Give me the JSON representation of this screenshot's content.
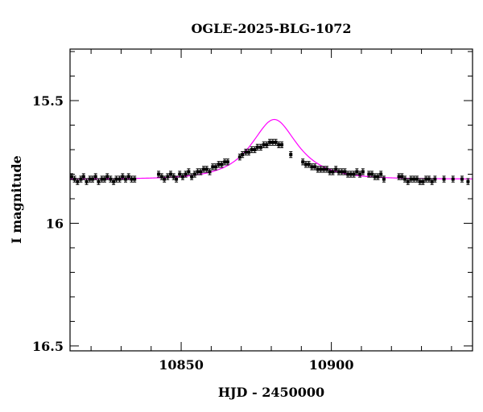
{
  "chart_data": {
    "type": "scatter",
    "title": "OGLE-2025-BLG-1072",
    "xlabel": "HJD - 2450000",
    "ylabel": "I magnitude",
    "xlim": [
      10813,
      10947
    ],
    "ylim": [
      16.52,
      15.29
    ],
    "y_inverted": true,
    "x_ticks_major": [
      10850,
      10900
    ],
    "x_tick_labels": [
      "10850",
      "10900"
    ],
    "x_ticks_minor_step": 10,
    "y_ticks_major": [
      15.5,
      16,
      16.5
    ],
    "y_tick_labels": [
      "15.5",
      "16",
      "16.5"
    ],
    "y_ticks_minor_step": 0.1,
    "grid": false,
    "model_color": "#ff00ff",
    "point_color": "#000000",
    "model": {
      "type": "paczynski",
      "t0": 10881.0,
      "u0": 0.62,
      "tE": 13.0,
      "baseline_mag": 15.82,
      "blend_fraction_source": 0.3
    },
    "series": [
      {
        "err": 0.012,
        "points": [
          [
            10813.5,
            15.81
          ],
          [
            10814.5,
            15.82
          ],
          [
            10815.5,
            15.83
          ],
          [
            10816.6,
            15.82
          ],
          [
            10817.5,
            15.81
          ],
          [
            10818.5,
            15.83
          ],
          [
            10819.6,
            15.82
          ],
          [
            10820.5,
            15.82
          ],
          [
            10821.5,
            15.81
          ],
          [
            10822.5,
            15.83
          ],
          [
            10823.6,
            15.82
          ],
          [
            10824.5,
            15.82
          ],
          [
            10825.4,
            15.81
          ],
          [
            10826.5,
            15.82
          ],
          [
            10827.5,
            15.83
          ],
          [
            10828.4,
            15.82
          ],
          [
            10829.5,
            15.82
          ],
          [
            10830.5,
            15.81
          ],
          [
            10831.5,
            15.82
          ],
          [
            10832.5,
            15.81
          ],
          [
            10833.5,
            15.82
          ],
          [
            10834.5,
            15.82
          ],
          [
            10842.5,
            15.8
          ],
          [
            10843.5,
            15.81
          ],
          [
            10844.4,
            15.82
          ],
          [
            10845.5,
            15.81
          ],
          [
            10846.5,
            15.8
          ],
          [
            10847.5,
            15.81
          ],
          [
            10848.4,
            15.82
          ],
          [
            10849.5,
            15.8
          ],
          [
            10850.5,
            15.81
          ],
          [
            10851.5,
            15.8
          ],
          [
            10852.5,
            15.79
          ],
          [
            10853.5,
            15.81
          ],
          [
            10854.5,
            15.8
          ],
          [
            10855.5,
            15.79
          ],
          [
            10856.5,
            15.79
          ],
          [
            10857.5,
            15.78
          ],
          [
            10858.5,
            15.78
          ],
          [
            10859.5,
            15.79
          ],
          [
            10860.5,
            15.77
          ],
          [
            10861.5,
            15.77
          ],
          [
            10862.5,
            15.76
          ],
          [
            10863.5,
            15.76
          ],
          [
            10864.5,
            15.75
          ],
          [
            10865.5,
            15.75
          ],
          [
            10869.5,
            15.73
          ],
          [
            10870.4,
            15.72
          ],
          [
            10871.5,
            15.71
          ],
          [
            10872.5,
            15.71
          ],
          [
            10873.5,
            15.7
          ],
          [
            10874.5,
            15.7
          ],
          [
            10875.4,
            15.69
          ],
          [
            10876.5,
            15.69
          ],
          [
            10877.5,
            15.68
          ],
          [
            10878.5,
            15.68
          ],
          [
            10879.5,
            15.67
          ],
          [
            10880.5,
            15.67
          ],
          [
            10881.5,
            15.67
          ],
          [
            10882.5,
            15.68
          ],
          [
            10883.5,
            15.68
          ],
          [
            10886.5,
            15.72
          ],
          [
            10890.5,
            15.75
          ],
          [
            10891.5,
            15.76
          ],
          [
            10892.5,
            15.76
          ],
          [
            10893.5,
            15.77
          ],
          [
            10894.5,
            15.77
          ],
          [
            10895.5,
            15.78
          ],
          [
            10896.5,
            15.78
          ],
          [
            10897.5,
            15.78
          ],
          [
            10898.5,
            15.78
          ],
          [
            10899.5,
            15.79
          ],
          [
            10900.5,
            15.79
          ],
          [
            10901.5,
            15.78
          ],
          [
            10902.5,
            15.79
          ],
          [
            10903.5,
            15.79
          ],
          [
            10904.5,
            15.79
          ],
          [
            10905.5,
            15.8
          ],
          [
            10906.5,
            15.8
          ],
          [
            10907.5,
            15.8
          ],
          [
            10908.5,
            15.79
          ],
          [
            10909.5,
            15.8
          ],
          [
            10910.5,
            15.79
          ],
          [
            10912.5,
            15.8
          ],
          [
            10913.5,
            15.8
          ],
          [
            10914.5,
            15.81
          ],
          [
            10915.5,
            15.81
          ],
          [
            10916.5,
            15.8
          ],
          [
            10917.5,
            15.82
          ],
          [
            10922.5,
            15.81
          ],
          [
            10923.5,
            15.81
          ],
          [
            10924.5,
            15.82
          ],
          [
            10925.5,
            15.83
          ],
          [
            10926.5,
            15.82
          ],
          [
            10927.5,
            15.82
          ],
          [
            10928.5,
            15.82
          ],
          [
            10929.5,
            15.83
          ],
          [
            10930.5,
            15.83
          ],
          [
            10931.5,
            15.82
          ],
          [
            10932.5,
            15.82
          ],
          [
            10933.5,
            15.83
          ],
          [
            10934.5,
            15.82
          ],
          [
            10937.5,
            15.82
          ],
          [
            10940.5,
            15.82
          ],
          [
            10943.5,
            15.82
          ],
          [
            10945.5,
            15.83
          ]
        ]
      }
    ]
  }
}
